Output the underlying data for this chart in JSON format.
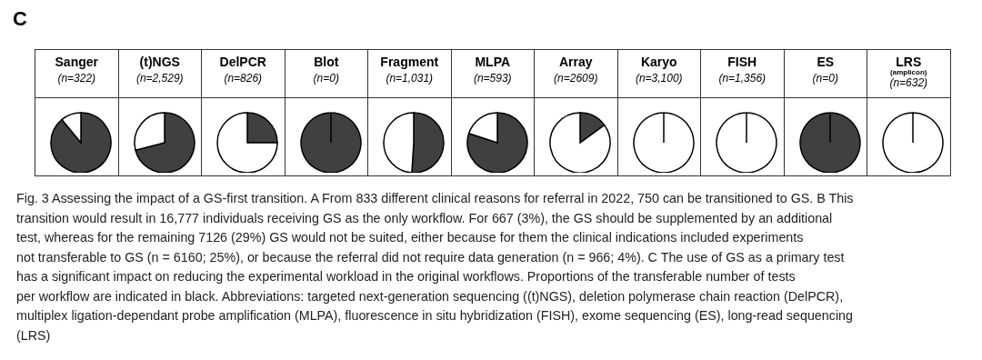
{
  "chart_data": [
    {
      "type": "other",
      "title": "C"
    },
    {
      "type": "pie",
      "title": "Sanger",
      "subtitle": "(n=322)",
      "categories": [
        null,
        null
      ],
      "values": [
        89,
        11
      ],
      "colors": [
        "#404040",
        "#ffffff"
      ]
    },
    {
      "type": "pie",
      "title": "(t)NGS",
      "subtitle": "(n=2,529)",
      "categories": [
        null,
        null
      ],
      "values": [
        71,
        29
      ],
      "colors": [
        "#404040",
        "#ffffff"
      ]
    },
    {
      "type": "pie",
      "title": "DelPCR",
      "subtitle": "(n=826)",
      "categories": [
        null,
        null
      ],
      "values": [
        25,
        75
      ],
      "colors": [
        "#404040",
        "#ffffff"
      ]
    },
    {
      "type": "pie",
      "title": "Blot",
      "subtitle": "(n=0)",
      "categories": [
        null,
        null
      ],
      "values": [
        100,
        0
      ],
      "colors": [
        "#404040",
        "#ffffff"
      ]
    },
    {
      "type": "pie",
      "title": "Fragment",
      "subtitle": "(n=1,031)",
      "categories": [
        null,
        null
      ],
      "values": [
        51,
        49
      ],
      "colors": [
        "#404040",
        "#ffffff"
      ]
    },
    {
      "type": "pie",
      "title": "MLPA",
      "subtitle": "(n=593)",
      "categories": [
        null,
        null
      ],
      "values": [
        80,
        20
      ],
      "colors": [
        "#404040",
        "#ffffff"
      ]
    },
    {
      "type": "pie",
      "title": "Array",
      "subtitle": "(n=2609)",
      "categories": [
        null,
        null
      ],
      "values": [
        15,
        85
      ],
      "colors": [
        "#404040",
        "#ffffff"
      ]
    },
    {
      "type": "pie",
      "title": "Karyo",
      "subtitle": "(n=3,100)",
      "categories": [
        null,
        null
      ],
      "values": [
        0,
        100
      ],
      "colors": [
        "#404040",
        "#ffffff"
      ]
    },
    {
      "type": "pie",
      "title": "FISH",
      "subtitle": "(n=1,356)",
      "categories": [
        null,
        null
      ],
      "values": [
        0,
        100
      ],
      "colors": [
        "#404040",
        "#ffffff"
      ]
    },
    {
      "type": "pie",
      "title": "ES",
      "subtitle": "(n=0)",
      "categories": [
        null,
        null
      ],
      "values": [
        100,
        0
      ],
      "colors": [
        "#404040",
        "#ffffff"
      ]
    },
    {
      "type": "pie",
      "title": "LRS",
      "subtitle": "(n=632)",
      "annotations": [
        "(amplicon)"
      ],
      "categories": [
        null,
        null
      ],
      "values": [
        0,
        100
      ],
      "colors": [
        "#404040",
        "#ffffff"
      ]
    },
    {
      "type": "other",
      "annotations": [
        "Fig. 3  Assessing the impact of a GS-first transition. A From 833 different clinical reasons for referral in 2022, 750 can be transitioned to GS. B This",
        "transition would result in 16,777 individuals receiving GS as the only workflow. For 667 (3%), the GS should be supplemented by an additional",
        "test, whereas for the remaining 7126 (29%) GS would not be suited, either because for them the clinical indications included experiments",
        "not transferable to GS (n = 6160; 25%), or because the referral did not require data generation (n = 966; 4%). C The use of GS as a primary test",
        "has a significant impact on reducing the experimental workload in the original workflows. Proportions of the transferable number of tests",
        "per workflow are indicated in black. Abbreviations: targeted next-generation sequencing ((t)NGS), deletion polymerase chain reaction (DelPCR),",
        "multiplex ligation-dependant probe amplification (MLPA), fluorescence in situ hybridization (FISH), exome sequencing (ES), long-read sequencing",
        "(LRS)"
      ]
    }
  ]
}
